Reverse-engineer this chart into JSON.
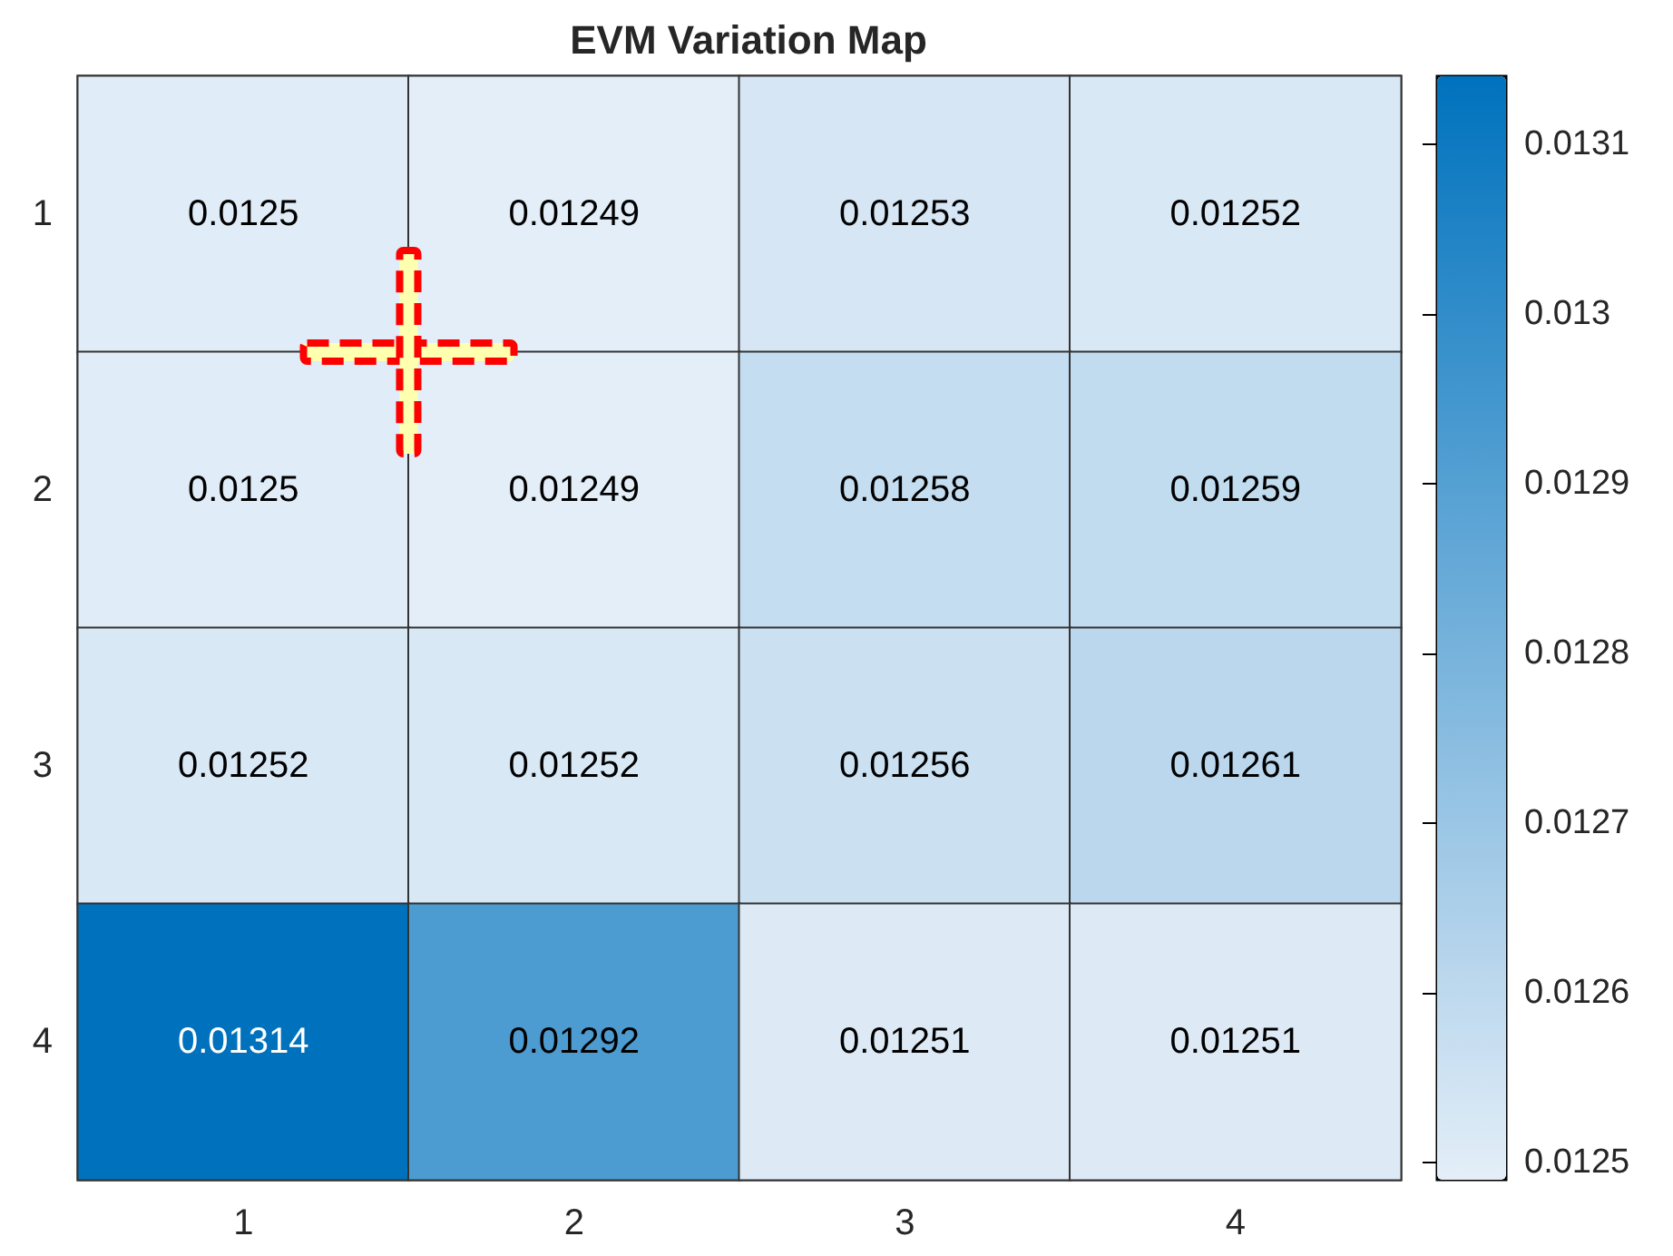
{
  "chart_data": {
    "type": "heatmap",
    "title": "EVM Variation Map",
    "categories": [
      "1",
      "2",
      "3",
      "4"
    ],
    "y_categories": [
      "1",
      "2",
      "3",
      "4"
    ],
    "cells": [
      [
        0.0125,
        0.01249,
        0.01253,
        0.01252
      ],
      [
        0.0125,
        0.01249,
        0.01258,
        0.01259
      ],
      [
        0.01252,
        0.01252,
        0.01256,
        0.01261
      ],
      [
        0.01314,
        0.01292,
        0.01251,
        0.01251
      ]
    ],
    "data_labels": true,
    "colors": [
      "#e4eef8",
      "#0072bd"
    ],
    "clim": [
      0.01249,
      0.01314
    ],
    "cticks": [
      0.0125,
      0.0126,
      0.0127,
      0.0128,
      0.0129,
      0.013,
      0.0131
    ]
  }
}
